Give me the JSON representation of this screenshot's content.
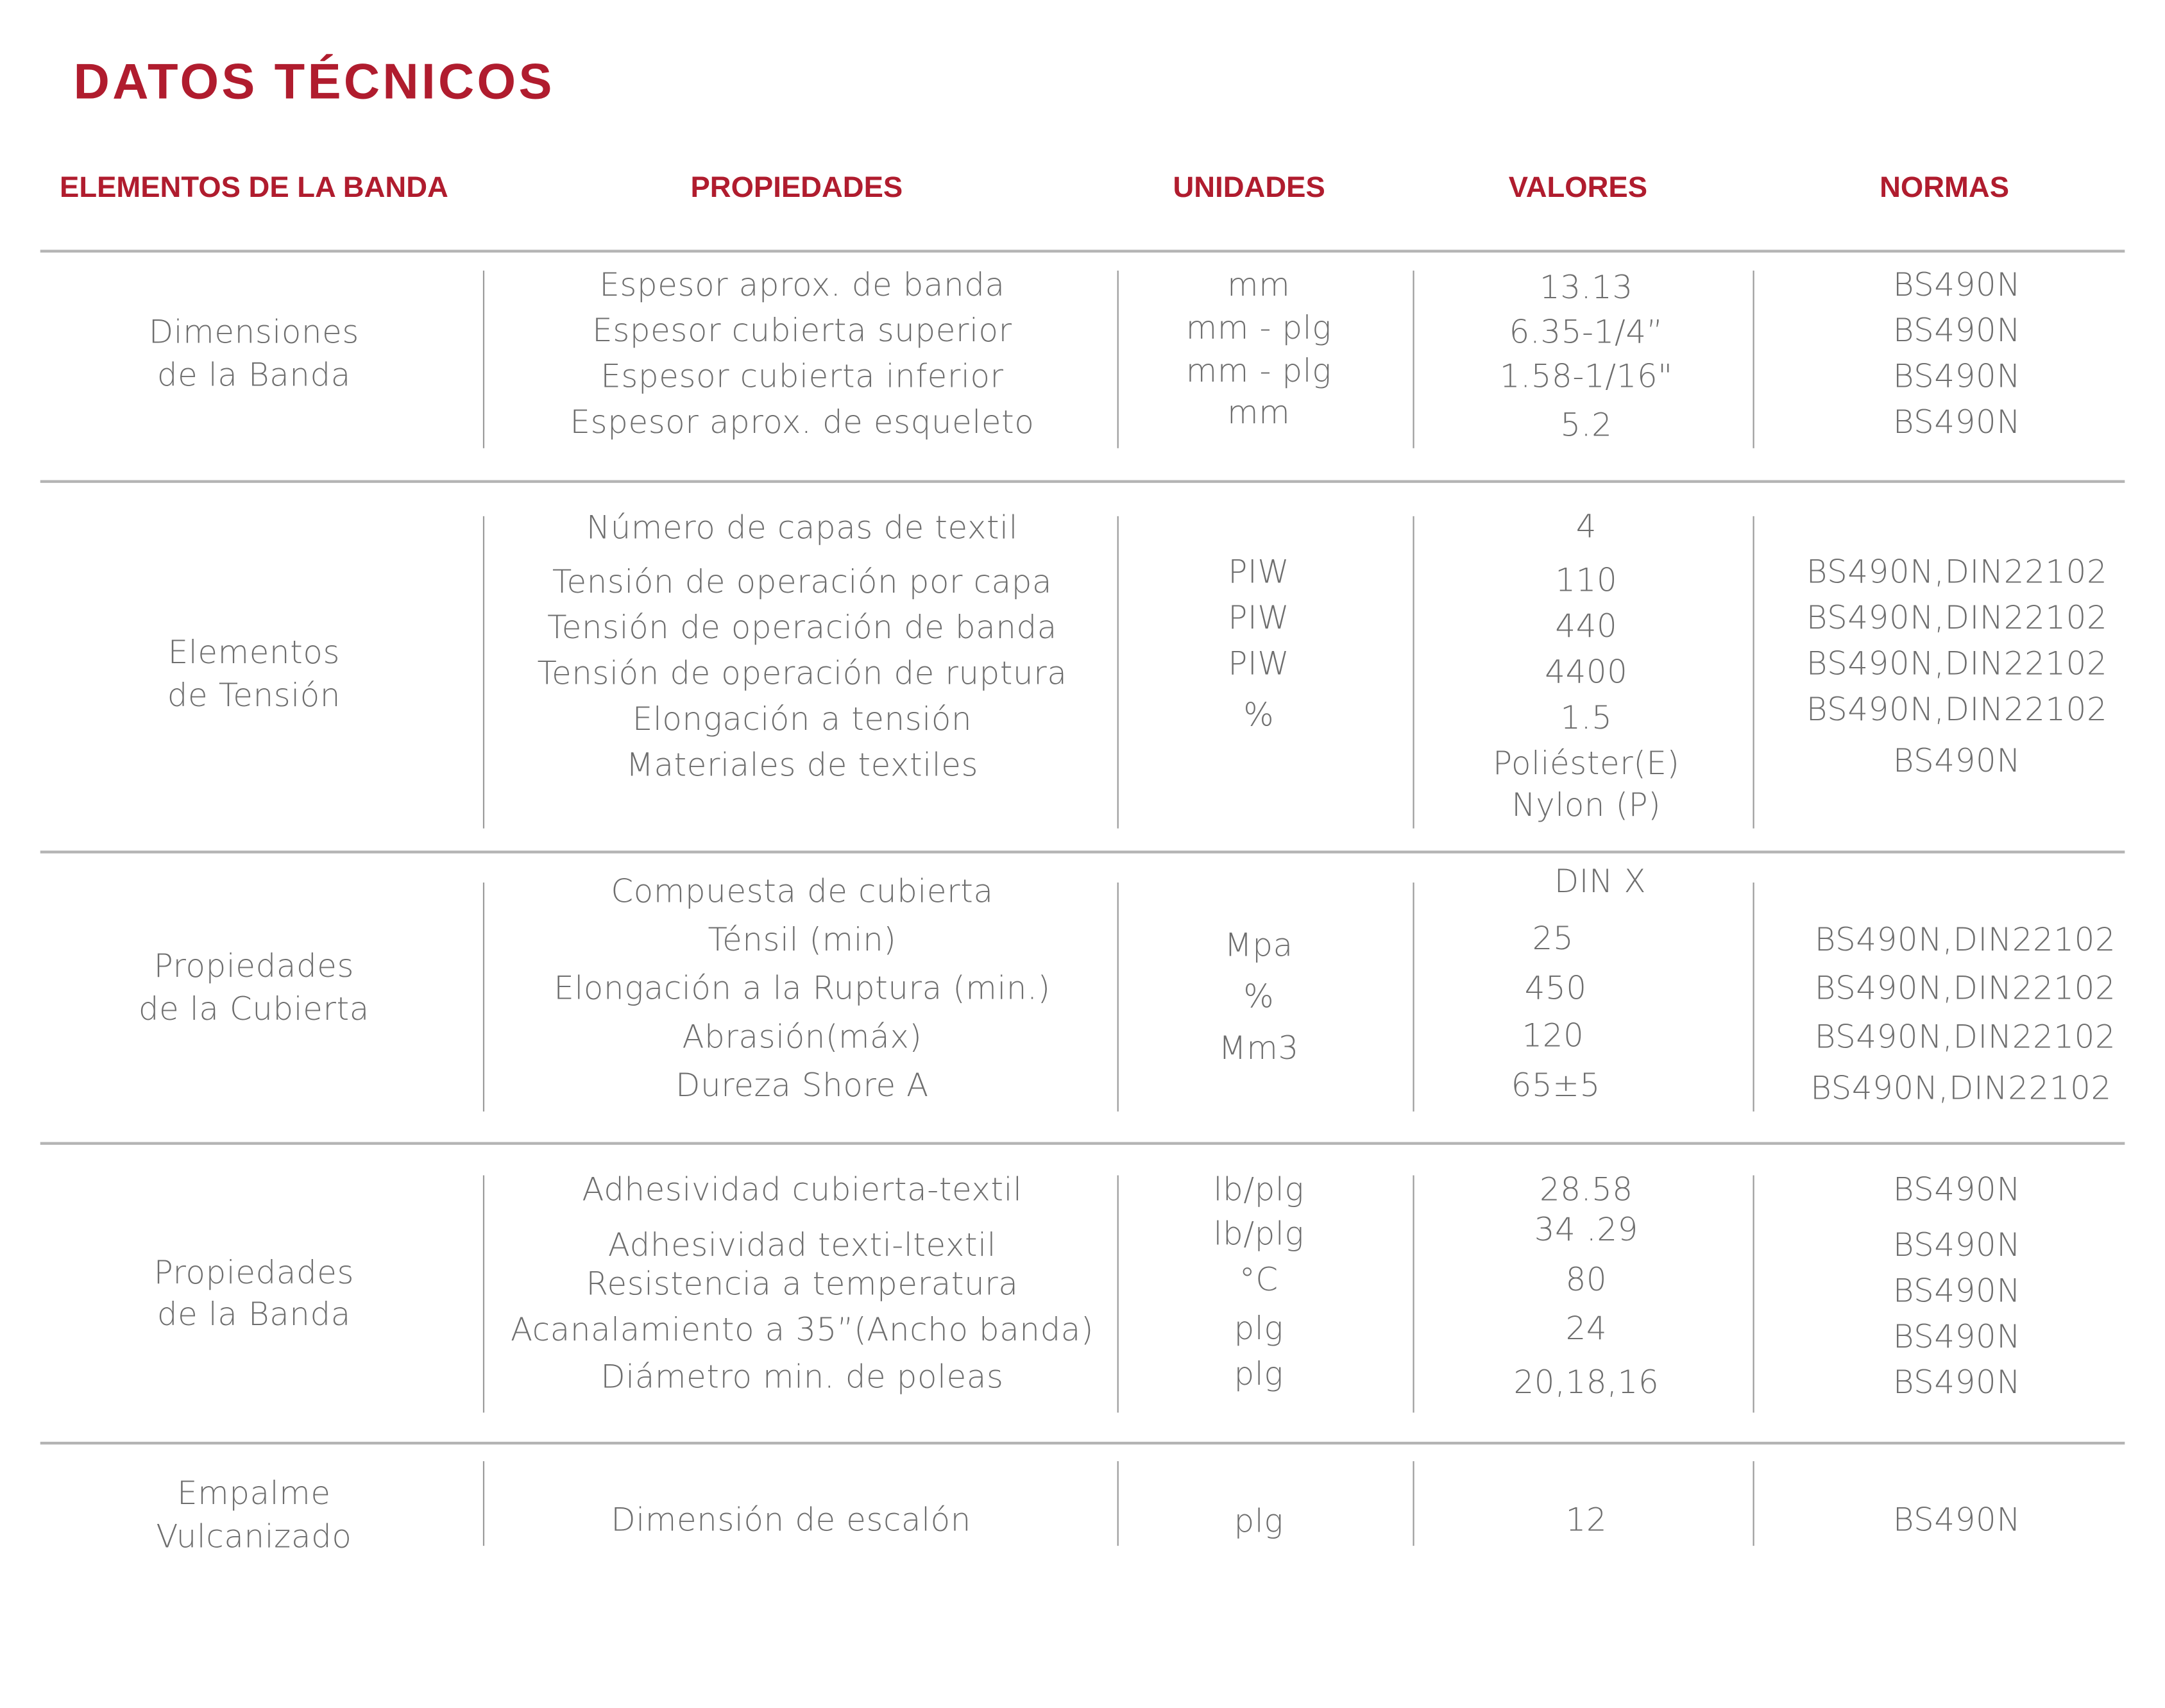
{
  "title": "DATOS TÉCNICOS",
  "accent_color": "#b01c2e",
  "headers": [
    "ELEMENTOS DE LA BANDA",
    "PROPIEDADES",
    "UNIDADES",
    "VALORES",
    "NORMAS"
  ],
  "sections": [
    {
      "element": [
        "Dimensiones",
        "de la Banda"
      ],
      "properties": [
        "Espesor aprox. de banda",
        "Espesor cubierta superior",
        "Espesor cubierta inferior",
        "Espesor aprox. de esqueleto"
      ],
      "units": [
        "mm",
        "mm - plg",
        "mm - plg",
        "mm"
      ],
      "values": [
        "13.13",
        "6.35-1/4”",
        "1.58-1/16\"",
        "5.2"
      ],
      "norms": [
        "BS490N",
        "BS490N",
        "BS490N",
        "BS490N"
      ]
    },
    {
      "element": [
        "Elementos",
        "de Tensión"
      ],
      "properties": [
        "Número de capas de textil",
        "Tensión de operación por capa",
        "Tensión de operación de banda",
        "Tensión de operación de ruptura",
        "Elongación a tensión",
        "Materiales de textiles"
      ],
      "units": [
        "PIW",
        "PIW",
        "PIW",
        "%"
      ],
      "values": [
        "4",
        "110",
        "440",
        "4400",
        "1.5",
        "Poliéster(E)",
        "Nylon (P)"
      ],
      "norms": [
        "BS490N,DIN22102",
        "BS490N,DIN22102",
        "BS490N,DIN22102",
        "BS490N,DIN22102",
        "BS490N"
      ]
    },
    {
      "element": [
        "Propiedades",
        "de la Cubierta"
      ],
      "properties": [
        "Compuesta de cubierta",
        "Ténsil (min)",
        "Elongación a la Ruptura (min.)",
        "Abrasión(máx)",
        "Dureza Shore A"
      ],
      "units": [
        "Mpa",
        "%",
        "Mm3"
      ],
      "values": [
        "DIN X",
        "25",
        "450",
        "120",
        "65±5"
      ],
      "norms": [
        "BS490N,DIN22102",
        "BS490N,DIN22102",
        "BS490N,DIN22102",
        "BS490N,DIN22102"
      ]
    },
    {
      "element": [
        "Propiedades",
        "de la Banda"
      ],
      "properties": [
        "Adhesividad cubierta-textil",
        "Adhesividad texti-ltextil",
        "Resistencia a temperatura",
        "Acanalamiento a 35”(Ancho banda)",
        "Diámetro min. de poleas"
      ],
      "units": [
        "lb/plg",
        "lb/plg",
        "°C",
        "plg",
        "plg"
      ],
      "values": [
        "28.58",
        "34 .29",
        "80",
        "24",
        "20,18,16"
      ],
      "norms": [
        "BS490N",
        "BS490N",
        "BS490N",
        "BS490N",
        "BS490N"
      ]
    },
    {
      "element": [
        "Empalme",
        "Vulcanizado"
      ],
      "properties": [
        "Dimensión de escalón"
      ],
      "units": [
        "plg"
      ],
      "values": [
        "12"
      ],
      "norms": [
        "BS490N"
      ]
    }
  ]
}
